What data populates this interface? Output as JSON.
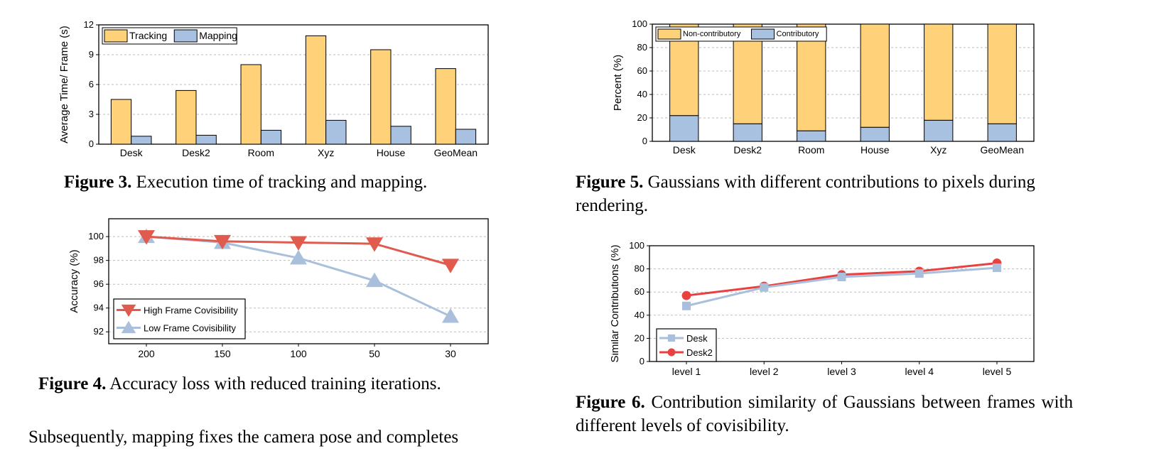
{
  "captions": {
    "fig3": {
      "label": "Figure 3.",
      "text": "Execution time of tracking and mapping."
    },
    "fig4": {
      "label": "Figure 4.",
      "text": "Accuracy loss with reduced training iterations."
    },
    "fig5": {
      "label": "Figure 5.",
      "text": "Gaussians with different contributions to pixels during rendering."
    },
    "fig6": {
      "label": "Figure 6.",
      "text": "Contribution similarity of Gaussians between frames with different levels of covisibility."
    }
  },
  "body_text": "Subsequently, mapping fixes the camera pose and completes",
  "chart_data": [
    {
      "id": "fig3",
      "type": "bar",
      "categories": [
        "Desk",
        "Desk2",
        "Room",
        "Xyz",
        "House",
        "GeoMean"
      ],
      "series": [
        {
          "name": "Tracking",
          "values": [
            4.5,
            5.4,
            8.0,
            10.9,
            9.5,
            7.6
          ],
          "color": "#FFD27A"
        },
        {
          "name": "Mapping",
          "values": [
            0.8,
            0.9,
            1.4,
            2.4,
            1.8,
            1.5
          ],
          "color": "#A9C1E0"
        }
      ],
      "ylabel": "Average Time/ Frame (s)",
      "ylim": [
        0,
        12
      ],
      "yticks": [
        "0",
        "3",
        "6",
        "9",
        "12"
      ],
      "grid": true,
      "legend": "top-left"
    },
    {
      "id": "fig4",
      "type": "line",
      "x": [
        "200",
        "150",
        "100",
        "50",
        "30"
      ],
      "series": [
        {
          "name": "High Frame Covisibility",
          "values": [
            100,
            99.6,
            99.5,
            99.4,
            97.6
          ],
          "color": "#E05A4E",
          "marker": "triangle-down"
        },
        {
          "name": "Low Frame Covisibility",
          "values": [
            100,
            99.5,
            98.2,
            96.3,
            93.3
          ],
          "color": "#A9BFDB",
          "marker": "triangle-up"
        }
      ],
      "ylabel": "Accuracy (%)",
      "ylim": [
        91,
        101.5
      ],
      "yticks": [
        "92",
        "94",
        "96",
        "98",
        "100"
      ],
      "grid": true,
      "legend": "bottom-left"
    },
    {
      "id": "fig5",
      "type": "bar",
      "stacked": true,
      "categories": [
        "Desk",
        "Desk2",
        "Room",
        "House",
        "Xyz",
        "GeoMean"
      ],
      "series": [
        {
          "name": "Non-contributory",
          "values": [
            78,
            85,
            91,
            88,
            82,
            85
          ],
          "color": "#FFD27A"
        },
        {
          "name": "Contributory",
          "values": [
            22,
            15,
            9,
            12,
            18,
            15
          ],
          "color": "#A9C1E0"
        }
      ],
      "ylabel": "Percent (%)",
      "ylim": [
        0,
        100
      ],
      "yticks": [
        "0",
        "20",
        "40",
        "60",
        "80",
        "100"
      ],
      "grid": true,
      "legend": "top-left"
    },
    {
      "id": "fig6",
      "type": "line",
      "x": [
        "level 1",
        "level 2",
        "level 3",
        "level 4",
        "level 5"
      ],
      "series": [
        {
          "name": "Desk",
          "values": [
            48,
            64,
            73,
            76,
            81
          ],
          "color": "#A9BFDB",
          "marker": "square"
        },
        {
          "name": "Desk2",
          "values": [
            57,
            65,
            75,
            78,
            85
          ],
          "color": "#E8413F",
          "marker": "circle"
        }
      ],
      "ylabel": "Similar Contributions (%)",
      "ylim": [
        0,
        100
      ],
      "yticks": [
        "0",
        "20",
        "40",
        "60",
        "80",
        "100"
      ],
      "grid": true,
      "legend": "bottom-left"
    }
  ]
}
